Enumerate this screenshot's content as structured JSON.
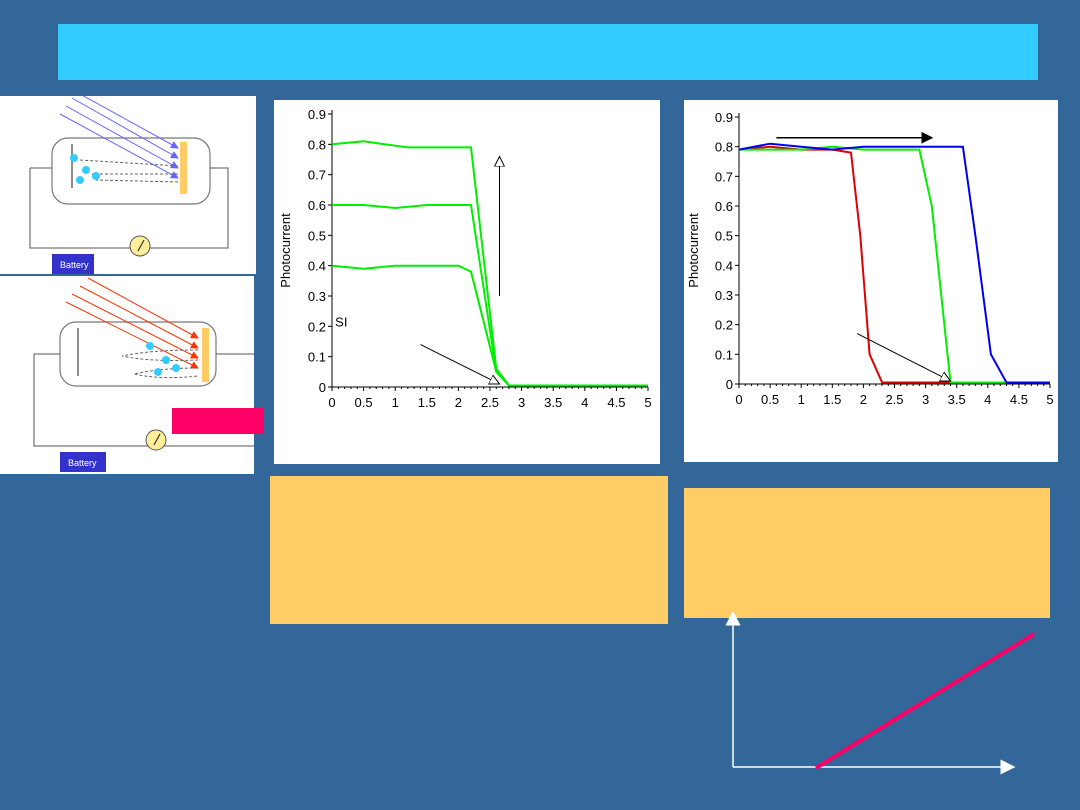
{
  "battery_label": "Battery",
  "colors": {
    "background": "#336699",
    "title_bar": "#33ccff",
    "note": "#ffcc66",
    "pink": "#ff0066",
    "green": "#00ee00",
    "red": "#dd0000",
    "blue": "#0000ee"
  },
  "chart_data": [
    {
      "type": "line",
      "ylabel": "Photocurrent",
      "annotation": "SI",
      "xlim": [
        0,
        5
      ],
      "ylim": [
        0,
        0.9
      ],
      "x_ticks": [
        "0",
        "0.5",
        "1",
        "1.5",
        "2",
        "2.5",
        "3",
        "3.5",
        "4",
        "4.5",
        "5"
      ],
      "y_ticks": [
        "0",
        "0.1",
        "0.2",
        "0.3",
        "0.4",
        "0.5",
        "0.6",
        "0.7",
        "0.8",
        "0.9"
      ],
      "series": [
        {
          "color": "#00ee00",
          "points": [
            [
              0,
              0.8
            ],
            [
              0.5,
              0.81
            ],
            [
              1.2,
              0.79
            ],
            [
              1.5,
              0.79
            ],
            [
              2.2,
              0.79
            ],
            [
              2.6,
              0.06
            ],
            [
              2.8,
              0.005
            ],
            [
              5,
              0.005
            ]
          ]
        },
        {
          "color": "#00ee00",
          "points": [
            [
              0,
              0.6
            ],
            [
              0.5,
              0.6
            ],
            [
              1,
              0.59
            ],
            [
              1.5,
              0.6
            ],
            [
              2.2,
              0.6
            ],
            [
              2.6,
              0.05
            ],
            [
              2.8,
              0.005
            ],
            [
              5,
              0.005
            ]
          ]
        },
        {
          "color": "#00ee00",
          "points": [
            [
              0,
              0.4
            ],
            [
              0.5,
              0.39
            ],
            [
              1,
              0.4
            ],
            [
              1.5,
              0.4
            ],
            [
              2,
              0.4
            ],
            [
              2.2,
              0.38
            ],
            [
              2.6,
              0.05
            ],
            [
              2.8,
              0.005
            ],
            [
              5,
              0.005
            ]
          ]
        }
      ]
    },
    {
      "type": "line",
      "ylabel": "Photocurrent",
      "xlim": [
        0,
        5
      ],
      "ylim": [
        0,
        0.9
      ],
      "x_ticks": [
        "0",
        "0.5",
        "1",
        "1.5",
        "2",
        "2.5",
        "3",
        "3.5",
        "4",
        "4.5",
        "5"
      ],
      "y_ticks": [
        "0",
        "0.1",
        "0.2",
        "0.3",
        "0.4",
        "0.5",
        "0.6",
        "0.7",
        "0.8",
        "0.9"
      ],
      "series": [
        {
          "color": "#dd0000",
          "points": [
            [
              0,
              0.79
            ],
            [
              0.5,
              0.8
            ],
            [
              1,
              0.79
            ],
            [
              1.5,
              0.79
            ],
            [
              1.8,
              0.78
            ],
            [
              1.95,
              0.5
            ],
            [
              2.1,
              0.1
            ],
            [
              2.3,
              0.005
            ],
            [
              5,
              0.005
            ]
          ]
        },
        {
          "color": "#00ee00",
          "points": [
            [
              0,
              0.79
            ],
            [
              0.5,
              0.79
            ],
            [
              1,
              0.79
            ],
            [
              1.5,
              0.8
            ],
            [
              2,
              0.79
            ],
            [
              2.5,
              0.79
            ],
            [
              2.9,
              0.79
            ],
            [
              3.1,
              0.6
            ],
            [
              3.4,
              0.005
            ],
            [
              5,
              0.005
            ]
          ]
        },
        {
          "color": "#0000ee",
          "points": [
            [
              0,
              0.79
            ],
            [
              0.5,
              0.81
            ],
            [
              1,
              0.8
            ],
            [
              1.5,
              0.79
            ],
            [
              2,
              0.8
            ],
            [
              2.5,
              0.8
            ],
            [
              3,
              0.8
            ],
            [
              3.6,
              0.8
            ],
            [
              3.8,
              0.5
            ],
            [
              4.05,
              0.1
            ],
            [
              4.3,
              0.005
            ],
            [
              5,
              0.005
            ]
          ]
        }
      ]
    }
  ]
}
